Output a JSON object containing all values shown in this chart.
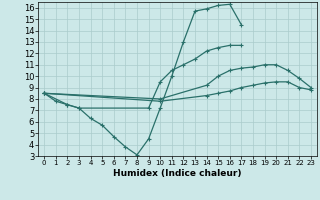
{
  "xlabel": "Humidex (Indice chaleur)",
  "xlim": [
    -0.5,
    23.5
  ],
  "ylim": [
    3,
    16.5
  ],
  "yticks": [
    3,
    4,
    5,
    6,
    7,
    8,
    9,
    10,
    11,
    12,
    13,
    14,
    15,
    16
  ],
  "xticks": [
    0,
    1,
    2,
    3,
    4,
    5,
    6,
    7,
    8,
    9,
    10,
    11,
    12,
    13,
    14,
    15,
    16,
    17,
    18,
    19,
    20,
    21,
    22,
    23
  ],
  "bg_color": "#cce8e8",
  "grid_color": "#aacccc",
  "line_color": "#2a706a",
  "line1_x": [
    0,
    1,
    2,
    3,
    4,
    5,
    6,
    7,
    8,
    9,
    10,
    11,
    12,
    13,
    14,
    15,
    16,
    17
  ],
  "line1_y": [
    8.5,
    7.8,
    7.5,
    7.2,
    6.3,
    5.7,
    4.7,
    3.8,
    3.1,
    4.5,
    7.2,
    10.0,
    13.0,
    15.7,
    15.9,
    16.2,
    16.3,
    14.5
  ],
  "line2_x": [
    0,
    2,
    3,
    9,
    10,
    11,
    12,
    13,
    14,
    15,
    16,
    17
  ],
  "line2_y": [
    8.5,
    7.5,
    7.2,
    7.2,
    9.5,
    10.5,
    11.0,
    11.5,
    12.2,
    12.5,
    12.7,
    12.7
  ],
  "line3_x": [
    0,
    10,
    14,
    15,
    16,
    17,
    18,
    19,
    20,
    21,
    22,
    23
  ],
  "line3_y": [
    8.5,
    8.0,
    9.2,
    10.0,
    10.5,
    10.7,
    10.8,
    11.0,
    11.0,
    10.5,
    9.8,
    9.0
  ],
  "line4_x": [
    0,
    10,
    14,
    15,
    16,
    17,
    18,
    19,
    20,
    21,
    22,
    23
  ],
  "line4_y": [
    8.5,
    7.8,
    8.3,
    8.5,
    8.7,
    9.0,
    9.2,
    9.4,
    9.5,
    9.5,
    9.0,
    8.8
  ]
}
